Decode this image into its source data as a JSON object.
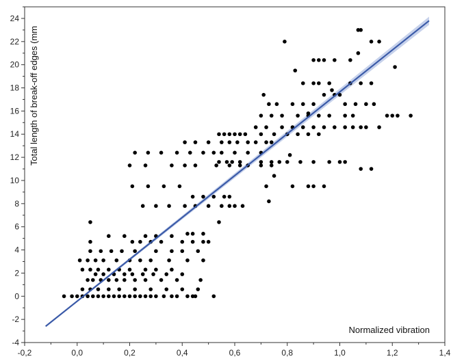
{
  "chart_data": {
    "type": "scatter",
    "title": "",
    "xlabel": "Normalized vibration",
    "ylabel": "Total length of break-off edges (mm",
    "xlim": [
      -0.2,
      1.4
    ],
    "ylim": [
      -4,
      25
    ],
    "x_ticks": [
      "-0,2",
      "0,0",
      "0,2",
      "0,4",
      "0,6",
      "0,8",
      "1,0",
      "1,2",
      "1,4"
    ],
    "y_ticks": [
      "-4",
      "-2",
      "0",
      "2",
      "4",
      "6",
      "8",
      "10",
      "12",
      "14",
      "16",
      "18",
      "20",
      "22",
      "24"
    ],
    "grid": false,
    "colors": {
      "points": "#000000",
      "fit_line": "#3a5aa8",
      "confidence_band": "#b8c6e6"
    },
    "fit_line": {
      "x": [
        -0.12,
        1.34
      ],
      "y": [
        -2.6,
        23.8
      ]
    },
    "series": [
      {
        "x": [
          -0.05,
          -0.02,
          0.0,
          0.02,
          0.04,
          0.06,
          0.08,
          0.1,
          0.12,
          0.14,
          0.16,
          0.18,
          0.2,
          0.22,
          0.24,
          0.26,
          0.28,
          0.3,
          0.33,
          0.36,
          0.38,
          0.42,
          0.44,
          0.45,
          0.52,
          0.02,
          0.05,
          0.08,
          0.12,
          0.16,
          0.22,
          0.28,
          0.34,
          0.4,
          0.46,
          0.04,
          0.06,
          0.09,
          0.12,
          0.15,
          0.18,
          0.22,
          0.26,
          0.32,
          0.38,
          0.47,
          0.07,
          0.1,
          0.14,
          0.18,
          0.21,
          0.25,
          0.29,
          0.34,
          0.4,
          0.02,
          0.05,
          0.08,
          0.12,
          0.16,
          0.2,
          0.26,
          0.3,
          0.36,
          0.01,
          0.04,
          0.07,
          0.1,
          0.15,
          0.2,
          0.24,
          0.28,
          0.35,
          0.42,
          0.48,
          0.05,
          0.09,
          0.13,
          0.17,
          0.22,
          0.3,
          0.36,
          0.4,
          0.46,
          0.05,
          0.21,
          0.24,
          0.28,
          0.32,
          0.4,
          0.44,
          0.48,
          0.5,
          0.05,
          0.12,
          0.18,
          0.26,
          0.3,
          0.36,
          0.42,
          0.44,
          0.48,
          0.54,
          0.25,
          0.3,
          0.35,
          0.41,
          0.45,
          0.5,
          0.55,
          0.58,
          0.6,
          0.63,
          0.21,
          0.27,
          0.33,
          0.39,
          0.44,
          0.48,
          0.52,
          0.56,
          0.58,
          0.2,
          0.26,
          0.36,
          0.41,
          0.45,
          0.53,
          0.58,
          0.62,
          0.65,
          0.7,
          0.74,
          0.22,
          0.27,
          0.32,
          0.38,
          0.43,
          0.48,
          0.52,
          0.55,
          0.6,
          0.65,
          0.7,
          0.41,
          0.45,
          0.5,
          0.55,
          0.58,
          0.61,
          0.65,
          0.68,
          0.72,
          0.74,
          0.54,
          0.56,
          0.58,
          0.6,
          0.62,
          0.64,
          0.7,
          0.75,
          0.8,
          0.84,
          0.88,
          0.92,
          0.54,
          0.57,
          0.59,
          0.62,
          0.7,
          0.74,
          0.77,
          0.8,
          0.85,
          0.9,
          0.96,
          1.0,
          0.68,
          0.72,
          0.78,
          0.82,
          0.86,
          0.9,
          0.94,
          0.98,
          1.02,
          1.05,
          1.08,
          1.1,
          1.15,
          0.7,
          0.74,
          0.78,
          0.84,
          0.88,
          0.92,
          0.96,
          1.02,
          1.05,
          1.18,
          1.2,
          1.22,
          1.27,
          0.71,
          0.73,
          0.76,
          0.82,
          0.86,
          0.9,
          0.94,
          0.98,
          1.0,
          1.02,
          1.06,
          1.1,
          1.13,
          0.86,
          0.9,
          0.92,
          0.96,
          1.04,
          1.08,
          1.12,
          0.82,
          0.88,
          0.9,
          0.94,
          1.08,
          1.12,
          0.83,
          0.9,
          0.92,
          0.94,
          0.98,
          1.04,
          1.07,
          1.15,
          1.21,
          0.79,
          1.07,
          1.08,
          1.12,
          0.73,
          0.72,
          0.75,
          0.81,
          0.88,
          0.97,
          1.02
        ],
        "y": [
          0,
          0,
          0,
          0,
          0,
          0,
          0,
          0,
          0,
          0,
          0,
          0,
          0,
          0,
          0,
          0,
          0,
          0,
          0,
          0,
          0,
          0,
          0,
          0,
          0,
          0.6,
          0.6,
          0.6,
          0.6,
          0.6,
          0.6,
          0.6,
          0.6,
          0.6,
          0.6,
          1.4,
          1.4,
          1.4,
          1.4,
          1.4,
          1.4,
          1.4,
          1.4,
          1.4,
          1.4,
          1.4,
          1.9,
          1.9,
          1.9,
          1.9,
          1.9,
          1.9,
          1.9,
          1.9,
          1.9,
          2.3,
          2.3,
          2.3,
          2.3,
          2.3,
          2.3,
          2.3,
          2.3,
          2.3,
          3.1,
          3.1,
          3.1,
          3.1,
          3.1,
          3.1,
          3.1,
          3.1,
          3.1,
          3.1,
          3.1,
          3.9,
          3.9,
          3.9,
          3.9,
          3.9,
          3.9,
          3.9,
          3.9,
          3.9,
          4.7,
          4.7,
          4.7,
          4.7,
          4.7,
          4.7,
          4.7,
          4.7,
          4.7,
          6.4,
          5.2,
          5.2,
          5.2,
          5.2,
          5.2,
          5.4,
          5.4,
          5.4,
          6.4,
          7.8,
          7.8,
          7.8,
          7.8,
          7.8,
          7.8,
          7.8,
          7.8,
          7.8,
          7.8,
          9.5,
          9.5,
          9.5,
          9.5,
          8.6,
          8.6,
          8.6,
          8.6,
          8.6,
          11.3,
          11.3,
          11.3,
          11.3,
          11.3,
          11.3,
          11.3,
          11.3,
          11.3,
          11.3,
          11.3,
          12.4,
          12.4,
          12.4,
          12.4,
          12.4,
          12.4,
          12.4,
          12.4,
          12.4,
          12.4,
          12.4,
          13.3,
          13.3,
          13.3,
          13.3,
          13.3,
          13.3,
          13.3,
          13.3,
          13.3,
          13.3,
          14.0,
          14.0,
          14.0,
          14.0,
          14.0,
          14.0,
          14.0,
          14.0,
          14.0,
          14.0,
          14.0,
          14.0,
          11.6,
          11.6,
          11.6,
          11.6,
          11.6,
          11.6,
          11.6,
          11.6,
          11.6,
          11.6,
          11.6,
          11.6,
          14.6,
          14.6,
          14.6,
          14.6,
          14.6,
          14.6,
          14.6,
          14.6,
          14.6,
          14.6,
          14.6,
          14.6,
          14.6,
          15.6,
          15.6,
          15.6,
          15.6,
          15.6,
          15.6,
          15.6,
          15.6,
          15.6,
          15.6,
          15.6,
          15.6,
          15.6,
          17.4,
          16.6,
          16.6,
          16.6,
          16.6,
          16.6,
          17.4,
          17.4,
          17.4,
          16.6,
          16.6,
          16.6,
          16.6,
          18.4,
          18.4,
          18.4,
          18.4,
          18.4,
          18.4,
          18.4,
          9.5,
          9.5,
          9.5,
          9.5,
          11.0,
          11.0,
          19.5,
          20.4,
          20.4,
          20.4,
          20.4,
          20.4,
          21.0,
          22.0,
          19.8,
          22.0,
          23.0,
          23.0,
          22.0,
          8.2,
          9.5,
          10.4,
          12.2,
          15.8,
          17.8,
          11.6
        ]
      }
    ]
  }
}
